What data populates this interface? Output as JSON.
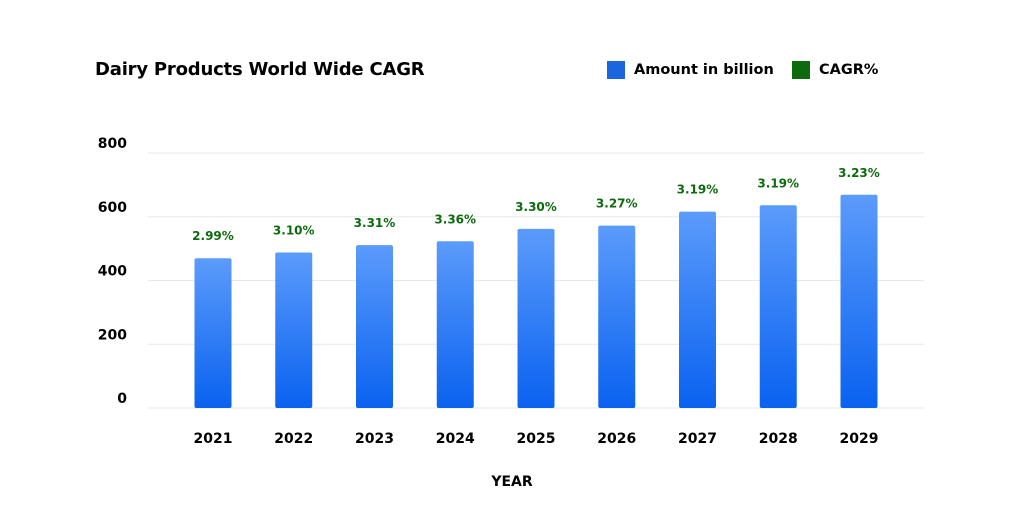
{
  "colors": {
    "bar_top": "#5b9bfb",
    "bar_bottom": "#0a62f0",
    "legend_amount": "#1a66de",
    "legend_cagr": "#0d6b0d",
    "cagr_text": "#0d6b0d",
    "grid": "#e8e8e8"
  },
  "legend": {
    "amount_label": "Amount in billion",
    "cagr_label": "CAGR%"
  },
  "chart_data": {
    "type": "bar",
    "title": "Dairy Products World Wide CAGR",
    "xlabel": "YEAR",
    "ylabel": "",
    "ylim": [
      0,
      800
    ],
    "yticks": [
      0,
      200,
      400,
      600,
      800
    ],
    "grid": true,
    "legend_position": "top-right",
    "categories": [
      "2021",
      "2022",
      "2023",
      "2024",
      "2025",
      "2026",
      "2027",
      "2028",
      "2029"
    ],
    "series": [
      {
        "name": "Amount in billion",
        "values": [
          470,
          488,
          511,
          523,
          562,
          572,
          616,
          636,
          669
        ]
      },
      {
        "name": "CAGR%",
        "labels": [
          "2.99%",
          "3.10%",
          "3.31%",
          "3.36%",
          "3.30%",
          "3.27%",
          "3.19%",
          "3.19%",
          "3.23%"
        ]
      }
    ]
  }
}
